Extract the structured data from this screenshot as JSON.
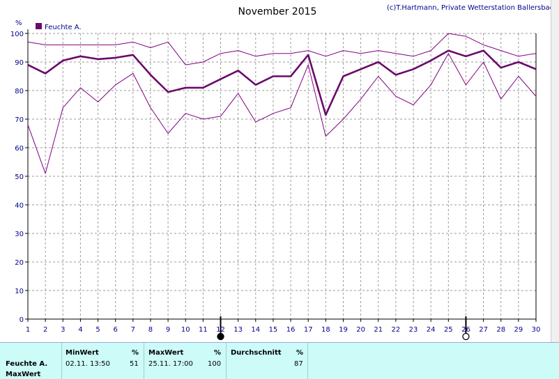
{
  "chart_data": {
    "type": "line",
    "title": "November 2015",
    "copyright": "(c)T.Hartmann, Private Wetterstation Ballersbach",
    "ylabel": "%",
    "ylim": [
      0,
      100
    ],
    "yticks": [
      0,
      10,
      20,
      30,
      40,
      50,
      60,
      70,
      80,
      90,
      100
    ],
    "x": [
      1,
      2,
      3,
      4,
      5,
      6,
      7,
      8,
      9,
      10,
      11,
      12,
      13,
      14,
      15,
      16,
      17,
      18,
      19,
      20,
      21,
      22,
      23,
      24,
      25,
      26,
      27,
      28,
      29,
      30
    ],
    "xlim": [
      1,
      30
    ],
    "grid": true,
    "legend": {
      "label": "Feuchte A.",
      "color": "#6a0a6a",
      "placement": "top-left"
    },
    "series": [
      {
        "role": "max",
        "color": "#800080",
        "values": [
          97,
          96,
          96,
          96,
          96,
          96,
          97,
          95,
          97,
          89,
          90,
          93,
          94,
          92,
          93,
          93,
          94,
          92,
          94,
          93,
          94,
          93,
          92,
          94,
          100,
          99,
          96,
          94,
          92,
          93
        ]
      },
      {
        "role": "average",
        "color": "#6a0a6a",
        "values": [
          89,
          86,
          90.5,
          92,
          91,
          91.5,
          92.5,
          85.5,
          79.5,
          81,
          81,
          84,
          87,
          82,
          85,
          85,
          92.5,
          71.5,
          85,
          87.5,
          90,
          85.5,
          87.5,
          90.5,
          94,
          92,
          94,
          88,
          90,
          87.5
        ]
      },
      {
        "role": "min",
        "color": "#800080",
        "values": [
          68,
          51,
          74,
          81,
          76,
          82,
          86,
          74,
          65,
          72,
          70,
          71,
          79,
          69,
          72,
          74,
          89,
          64,
          70,
          77,
          85,
          78,
          75,
          82,
          93,
          82,
          90,
          77,
          85,
          78
        ]
      }
    ],
    "moon_markers": [
      {
        "day": 12,
        "phase": "new-moon"
      },
      {
        "day": 26,
        "phase": "full-moon"
      }
    ]
  },
  "stats": {
    "headers": {
      "min": "MinWert",
      "min_unit": "%",
      "max": "MaxWert",
      "max_unit": "%",
      "avg": "Durchschnitt",
      "avg_unit": "%"
    },
    "row": {
      "label": "Feuchte A.",
      "min_time": "02.11.  13:50",
      "min_value": "51",
      "max_time": "25.11.  17:00",
      "max_value": "100",
      "avg_value": "87"
    },
    "next_label": "MaxWert"
  }
}
